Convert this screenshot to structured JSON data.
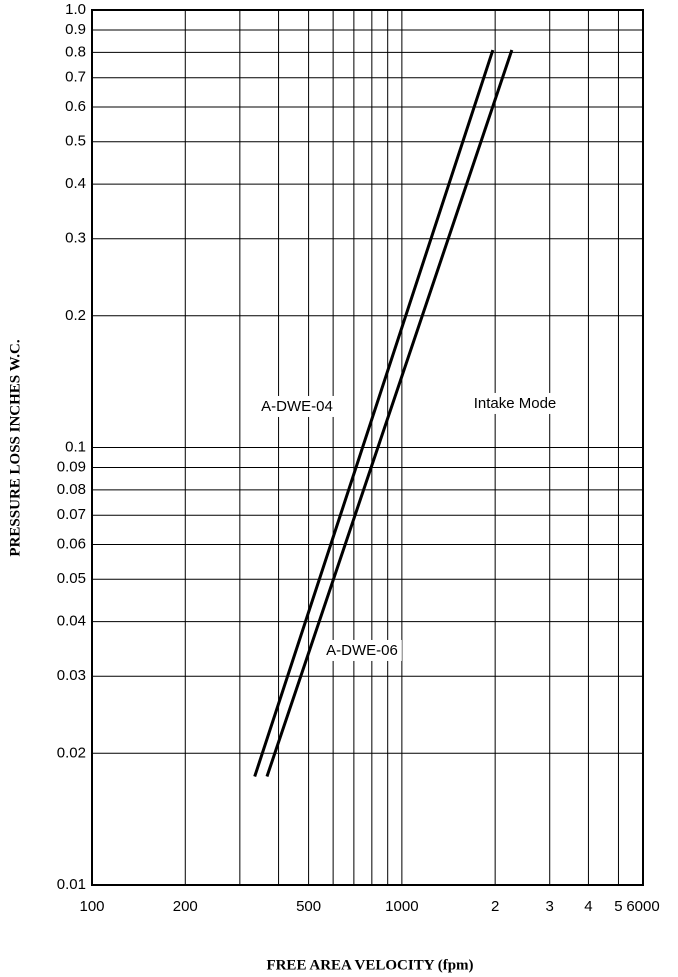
{
  "chart_data": {
    "type": "line",
    "log_x": true,
    "log_y": true,
    "grid": true,
    "xlabel": "FREE AREA VELOCITY (fpm)",
    "ylabel": "PRESSURE LOSS INCHES  W.C.",
    "xlim": [
      100,
      6000
    ],
    "ylim": [
      0.01,
      1
    ],
    "xticks": [
      100,
      200,
      500,
      1000,
      {
        "value": 2000,
        "label": "2"
      },
      {
        "value": 3000,
        "label": "3"
      },
      {
        "value": 4000,
        "label": "4"
      },
      {
        "value": 5000,
        "label": "5"
      },
      6000
    ],
    "xminor": [
      300,
      400,
      600,
      700,
      800,
      900
    ],
    "yticks": [
      0.01,
      0.02,
      0.03,
      0.04,
      0.05,
      0.06,
      0.07,
      0.08,
      0.09,
      0.1,
      0.2,
      0.3,
      0.4,
      0.5,
      0.6,
      0.7,
      0.8,
      0.9,
      {
        "value": 1,
        "label": "1.0"
      }
    ],
    "series": [
      {
        "name": "A-DWE-04",
        "color": "#000000",
        "x": [
          335,
          1966
        ],
        "values": [
          0.0177,
          0.81
        ]
      },
      {
        "name": "A-DWE-06",
        "color": "#000000",
        "x": [
          367,
          2264
        ],
        "values": [
          0.0177,
          0.81
        ]
      }
    ],
    "annotations": [
      "Intake Mode"
    ]
  }
}
